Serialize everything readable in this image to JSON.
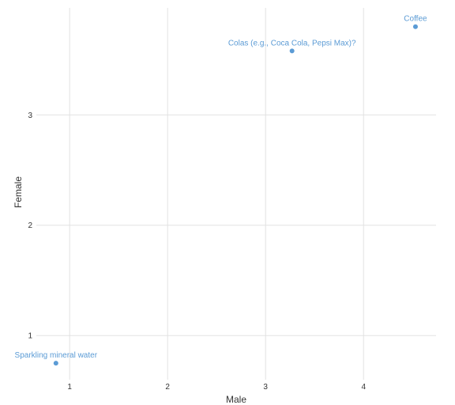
{
  "chart_data": {
    "type": "scatter",
    "title": "",
    "xlabel": "Male",
    "ylabel": "Female",
    "xlim": [
      0.66,
      4.74
    ],
    "ylim": [
      0.6,
      3.97
    ],
    "x_ticks": [
      1,
      2,
      3,
      4
    ],
    "y_ticks": [
      1,
      2,
      3
    ],
    "grid": true,
    "color": "#5b9bd5",
    "points": [
      {
        "label": "Coffee",
        "x": 4.53,
        "y": 3.8
      },
      {
        "label": "Colas (e.g., Coca Cola, Pepsi Max)?",
        "x": 3.27,
        "y": 3.58
      },
      {
        "label": "Sparkling mineral water",
        "x": 0.86,
        "y": 0.75
      }
    ]
  }
}
